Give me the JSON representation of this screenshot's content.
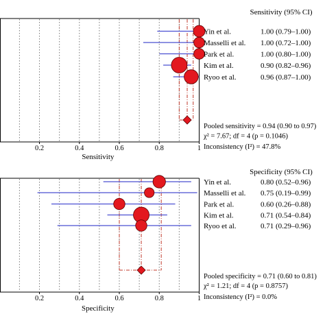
{
  "chart_data": [
    {
      "type": "forest",
      "column_header": "Sensitivity (95% CI)",
      "xlabel": "Sensitivity",
      "xlim": [
        0,
        1
      ],
      "x_ticks": [
        "0.2",
        "0.4",
        "0.6",
        "0.8",
        "1"
      ],
      "studies": [
        {
          "label": "Yin et al.",
          "estimate": 1.0,
          "ci": [
            0.79,
            1.0
          ],
          "ci_text": "1.00 (0.79–1.00)",
          "weight": 1.0
        },
        {
          "label": "Masselli et al.",
          "estimate": 1.0,
          "ci": [
            0.72,
            1.0
          ],
          "ci_text": "1.00 (0.72–1.00)",
          "weight": 0.85
        },
        {
          "label": "Park et al.",
          "estimate": 1.0,
          "ci": [
            0.8,
            1.0
          ],
          "ci_text": "1.00 (0.80–1.00)",
          "weight": 0.85
        },
        {
          "label": "Kim et al.",
          "estimate": 0.9,
          "ci": [
            0.82,
            0.96
          ],
          "ci_text": "0.90 (0.82–0.96)",
          "weight": 1.7
        },
        {
          "label": "Ryoo et al.",
          "estimate": 0.96,
          "ci": [
            0.87,
            1.0
          ],
          "ci_text": "0.96 (0.87–1.00)",
          "weight": 1.4
        }
      ],
      "pooled": {
        "estimate": 0.94,
        "ci": [
          0.9,
          0.97
        ]
      },
      "pooled_text": "Pooled sensitivity = 0.94 (0.90 to 0.97)",
      "chi_text": "χ² = 7.67; df = 4 (p = 0.1046)",
      "inconsistency_text": "Inconsistency (I²) = 47.8%"
    },
    {
      "type": "forest",
      "column_header": "Specificity (95% CI)",
      "xlabel": "Specificity",
      "xlim": [
        0,
        1
      ],
      "x_ticks": [
        "0.2",
        "0.4",
        "0.6",
        "0.8",
        "1"
      ],
      "studies": [
        {
          "label": "Yin et al.",
          "estimate": 0.8,
          "ci": [
            0.52,
            0.96
          ],
          "ci_text": "0.80 (0.52–0.96)",
          "weight": 1.15
        },
        {
          "label": "Masselli et al.",
          "estimate": 0.75,
          "ci": [
            0.19,
            0.99
          ],
          "ci_text": "0.75 (0.19–0.99)",
          "weight": 0.7
        },
        {
          "label": "Park et al.",
          "estimate": 0.6,
          "ci": [
            0.26,
            0.88
          ],
          "ci_text": "0.60 (0.26–0.88)",
          "weight": 0.95
        },
        {
          "label": "Kim et al.",
          "estimate": 0.71,
          "ci": [
            0.54,
            0.84
          ],
          "ci_text": "0.71 (0.54–0.84)",
          "weight": 1.75
        },
        {
          "label": "Ryoo et al.",
          "estimate": 0.71,
          "ci": [
            0.29,
            0.96
          ],
          "ci_text": "0.71 (0.29–0.96)",
          "weight": 0.95
        }
      ],
      "pooled": {
        "estimate": 0.71,
        "ci": [
          0.6,
          0.81
        ]
      },
      "pooled_text": "Pooled specificity = 0.71 (0.60 to 0.81)",
      "chi_text": "χ² = 1.21; df = 4 (p = 0.8757)",
      "inconsistency_text": "Inconsistency (I²) = 0.0%"
    }
  ]
}
